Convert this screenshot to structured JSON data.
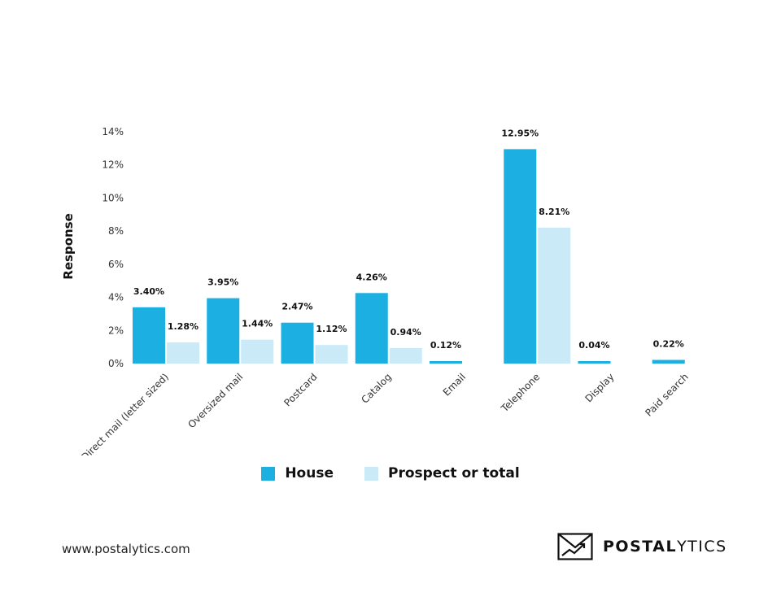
{
  "colors": {
    "house": "#1CAFE2",
    "prospect": "#C9EAF6",
    "axis_text": "#333333"
  },
  "chart_data": {
    "type": "bar",
    "ylabel": "Response",
    "xlabel": "",
    "ylim": [
      0,
      14
    ],
    "yticks": [
      0,
      2,
      4,
      6,
      8,
      10,
      12,
      14
    ],
    "ytick_labels": [
      "0%",
      "2%",
      "4%",
      "6%",
      "8%",
      "10%",
      "12%",
      "14%"
    ],
    "grid": false,
    "legend_position": "bottom",
    "categories": [
      "Direct mail (letter sized)",
      "Oversized mail",
      "Postcard",
      "Catalog",
      "Email",
      "Telephone",
      "Display",
      "Paid search"
    ],
    "series": [
      {
        "name": "House",
        "color": "#1CAFE2",
        "values": [
          3.4,
          3.95,
          2.47,
          4.26,
          0.12,
          12.95,
          0.04,
          0.22
        ],
        "labels": [
          "3.40%",
          "3.95%",
          "2.47%",
          "4.26%",
          "0.12%",
          "12.95%",
          "0.04%",
          "0.22%"
        ]
      },
      {
        "name": "Prospect or total",
        "color": "#C9EAF6",
        "values": [
          1.28,
          1.44,
          1.12,
          0.94,
          null,
          8.21,
          null,
          null
        ],
        "labels": [
          "1.28%",
          "1.44%",
          "1.12%",
          "0.94%",
          "",
          "8.21%",
          "",
          ""
        ]
      }
    ]
  },
  "footer": {
    "url": "www.postalytics.com",
    "brand_strong": "POSTAL",
    "brand_light": "YTICS",
    "logo_icon": "envelope-chart-icon"
  }
}
